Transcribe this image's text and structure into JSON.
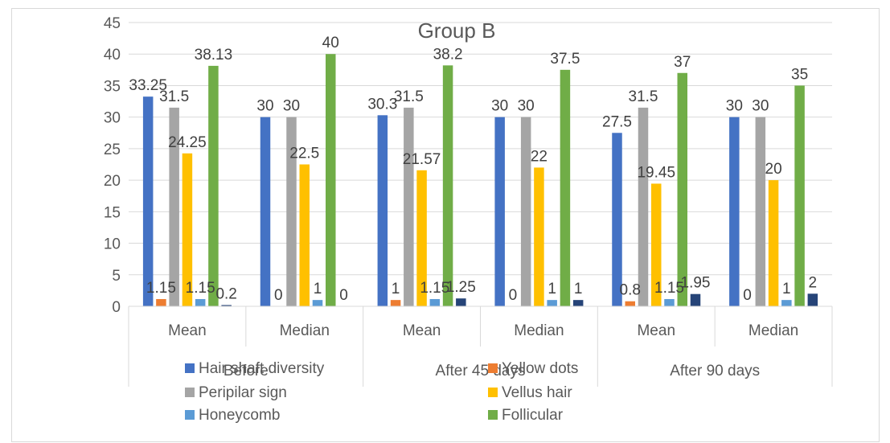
{
  "chart_data": {
    "type": "bar",
    "title": "Group B",
    "groups": [
      {
        "label": "Before",
        "categories": [
          "Mean",
          "Median"
        ]
      },
      {
        "label": "After 45 days",
        "categories": [
          "Mean",
          "Median"
        ]
      },
      {
        "label": "After 90 days",
        "categories": [
          "Mean",
          "Median"
        ]
      }
    ],
    "ylim": [
      0,
      45
    ],
    "yticks": [
      0,
      5,
      10,
      15,
      20,
      25,
      30,
      35,
      40,
      45
    ],
    "grid": true,
    "legend": "bottom",
    "series": [
      {
        "name": "Hair shaft diversity",
        "color": "#4472C4",
        "values": [
          33.25,
          30,
          30.3,
          30,
          27.5,
          30
        ],
        "labels": [
          "33.25",
          "30",
          "30.3",
          "30",
          "27.5",
          "30"
        ]
      },
      {
        "name": "Yellow dots",
        "color": "#ED7D31",
        "values": [
          1.15,
          0,
          1,
          0,
          0.8,
          0
        ],
        "labels": [
          "1.15",
          "0",
          "1",
          "0",
          "0.8",
          "0"
        ]
      },
      {
        "name": "Peripilar sign",
        "color": "#A5A5A5",
        "values": [
          31.5,
          30,
          31.5,
          30,
          31.5,
          30
        ],
        "labels": [
          "31.5",
          "30",
          "31.5",
          "30",
          "31.5",
          "30"
        ]
      },
      {
        "name": "Vellus hair",
        "color": "#FFC000",
        "values": [
          24.25,
          22.5,
          21.57,
          22,
          19.45,
          20
        ],
        "labels": [
          "24.25",
          "22.5",
          "21.57",
          "22",
          "19.45",
          "20"
        ]
      },
      {
        "name": "Honeycomb",
        "color": "#5B9BD5",
        "values": [
          1.15,
          1,
          1.15,
          1,
          1.15,
          1
        ],
        "labels": [
          "1.15",
          "1",
          "1.15",
          "1",
          "1.15",
          "1"
        ]
      },
      {
        "name": "Follicular",
        "color": "#70AD47",
        "values": [
          38.13,
          40,
          38.2,
          37.5,
          37,
          35
        ],
        "labels": [
          "38.13",
          "40",
          "38.2",
          "37.5",
          "37",
          "35"
        ]
      },
      {
        "name": "",
        "color": "#264478",
        "values": [
          0.2,
          0,
          1.25,
          1,
          1.95,
          2
        ],
        "labels": [
          "0.2",
          "0",
          "1.25",
          "1",
          "1.95",
          "2"
        ]
      }
    ]
  }
}
